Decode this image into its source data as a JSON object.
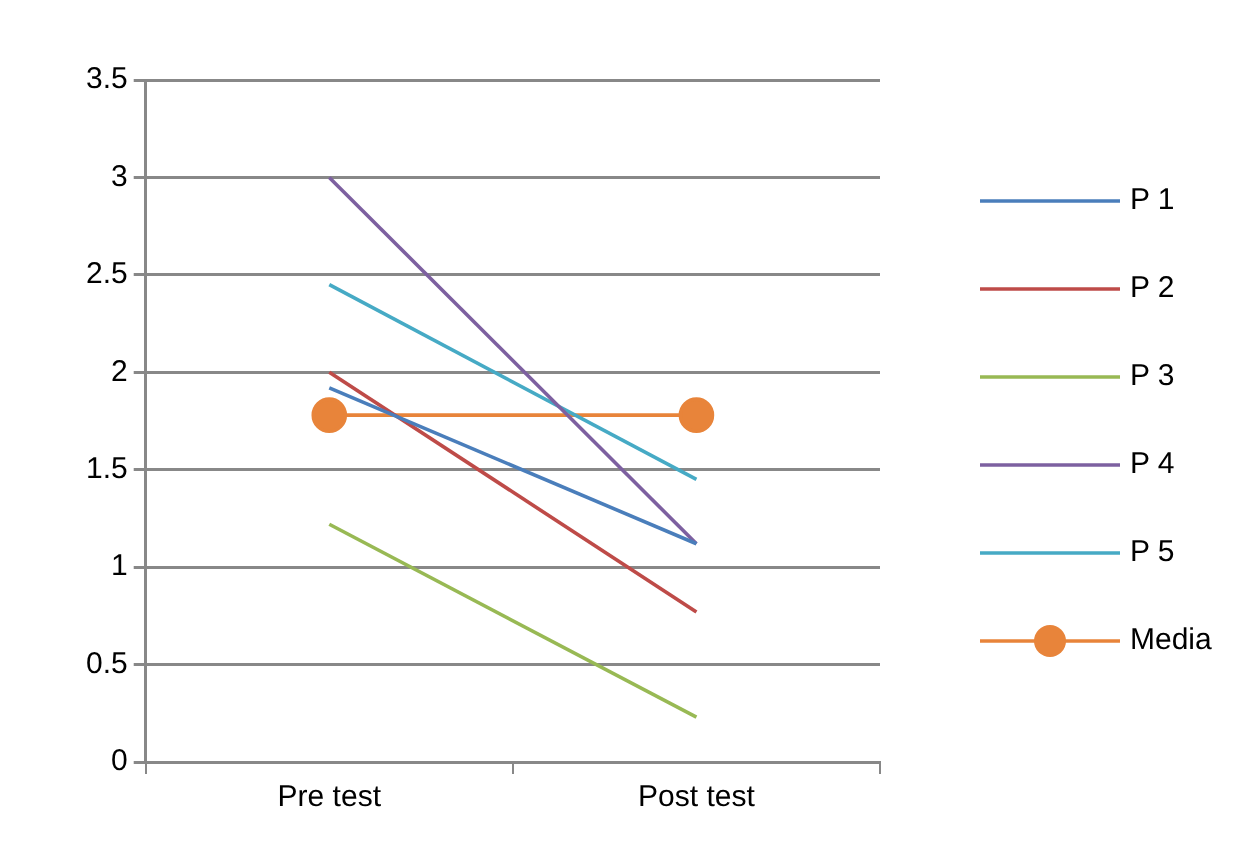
{
  "chart_data": {
    "type": "line",
    "categories": [
      "Pre test",
      "Post test"
    ],
    "series": [
      {
        "name": "P 1",
        "color": "#4a7ebb",
        "values": [
          1.92,
          1.12
        ],
        "marker": "none"
      },
      {
        "name": "P 2",
        "color": "#be4b48",
        "values": [
          2.0,
          0.77
        ],
        "marker": "none"
      },
      {
        "name": "P 3",
        "color": "#98b954",
        "values": [
          1.22,
          0.23
        ],
        "marker": "none"
      },
      {
        "name": "P 4",
        "color": "#7d60a0",
        "values": [
          3.0,
          1.12
        ],
        "marker": "none"
      },
      {
        "name": "P 5",
        "color": "#46aac5",
        "values": [
          2.45,
          1.45
        ],
        "marker": "none"
      },
      {
        "name": "Media",
        "color": "#e8843a",
        "values": [
          1.78,
          1.78
        ],
        "marker": "circle"
      }
    ],
    "ylim": [
      0,
      3.5
    ],
    "yticks": [
      0,
      0.5,
      1,
      1.5,
      2,
      2.5,
      3,
      3.5
    ],
    "grid": "y",
    "legend": "right",
    "line_style": "solid"
  }
}
